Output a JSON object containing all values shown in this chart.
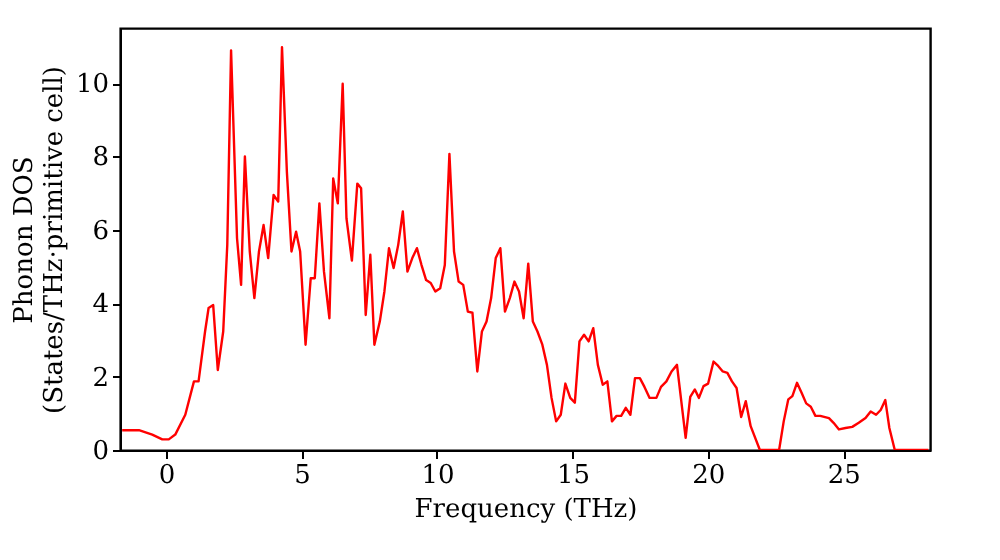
{
  "chart_data": {
    "type": "line",
    "xlabel": "Frequency (THz)",
    "ylabel": "Phonon DOS\n(States/THz·primitive cell)",
    "xlim": [
      -1.7,
      28.2
    ],
    "ylim": [
      0,
      11.5
    ],
    "xticks": [
      0,
      5,
      10,
      15,
      20,
      25
    ],
    "yticks": [
      0,
      2,
      4,
      6,
      8,
      10
    ],
    "grid": false,
    "legend": false,
    "marker": "none",
    "line_style": "solid",
    "series": [
      {
        "color": "#ff0000",
        "x": [
          -1.62,
          -1.0,
          -0.51,
          -0.14,
          0.1,
          0.34,
          0.71,
          1.03,
          1.2,
          1.44,
          1.57,
          1.74,
          1.91,
          2.11,
          2.26,
          2.4,
          2.62,
          2.77,
          2.91,
          3.09,
          3.26,
          3.43,
          3.6,
          3.77,
          3.97,
          4.14,
          4.28,
          4.46,
          4.63,
          4.8,
          4.95,
          5.15,
          5.34,
          5.49,
          5.66,
          5.83,
          6.03,
          6.17,
          6.34,
          6.52,
          6.66,
          6.86,
          7.06,
          7.2,
          7.37,
          7.54,
          7.69,
          7.89,
          8.06,
          8.23,
          8.4,
          8.57,
          8.74,
          8.91,
          9.09,
          9.26,
          9.43,
          9.6,
          9.77,
          9.94,
          10.12,
          10.29,
          10.46,
          10.63,
          10.8,
          10.97,
          11.14,
          11.31,
          11.49,
          11.66,
          11.83,
          12.0,
          12.17,
          12.34,
          12.51,
          12.69,
          12.86,
          13.03,
          13.2,
          13.37,
          13.54,
          13.71,
          13.89,
          14.06,
          14.23,
          14.4,
          14.57,
          14.74,
          14.92,
          15.09,
          15.26,
          15.43,
          15.6,
          15.77,
          15.94,
          16.12,
          16.29,
          16.46,
          16.63,
          16.8,
          16.97,
          17.14,
          17.31,
          17.49,
          17.66,
          17.85,
          18.1,
          18.27,
          18.47,
          18.66,
          18.86,
          19.18,
          19.35,
          19.52,
          19.67,
          19.84,
          20.01,
          20.21,
          20.38,
          20.55,
          20.72,
          20.89,
          21.06,
          21.23,
          21.4,
          21.58,
          21.92,
          22.63,
          22.8,
          22.97,
          23.12,
          23.29,
          23.46,
          23.63,
          23.8,
          23.97,
          24.15,
          24.47,
          24.64,
          24.84,
          25.08,
          25.33,
          25.57,
          25.82,
          26.01,
          26.21,
          26.38,
          26.55,
          26.7,
          26.9,
          28.14
        ],
        "values": [
          0.54,
          0.54,
          0.42,
          0.29,
          0.29,
          0.42,
          0.96,
          1.87,
          1.87,
          3.23,
          3.87,
          3.95,
          2.18,
          3.23,
          5.59,
          10.89,
          5.77,
          4.5,
          8.0,
          5.41,
          4.14,
          5.41,
          6.13,
          5.23,
          6.95,
          6.77,
          10.98,
          7.58,
          5.41,
          5.95,
          5.41,
          2.87,
          4.68,
          4.68,
          6.72,
          4.86,
          3.59,
          7.4,
          6.72,
          9.98,
          6.31,
          5.16,
          7.26,
          7.13,
          3.68,
          5.32,
          2.87,
          3.5,
          4.32,
          5.5,
          4.96,
          5.59,
          6.5,
          4.86,
          5.23,
          5.5,
          5.04,
          4.63,
          4.55,
          4.32,
          4.41,
          5.04,
          8.07,
          5.41,
          4.59,
          4.5,
          3.77,
          3.74,
          2.14,
          3.23,
          3.5,
          4.14,
          5.23,
          5.5,
          3.77,
          4.14,
          4.59,
          4.32,
          3.59,
          5.08,
          3.5,
          3.23,
          2.87,
          2.32,
          1.42,
          0.78,
          0.96,
          1.81,
          1.42,
          1.29,
          2.96,
          3.14,
          2.96,
          3.32,
          2.32,
          1.78,
          1.87,
          0.78,
          0.93,
          0.93,
          1.15,
          0.96,
          1.96,
          1.96,
          1.72,
          1.42,
          1.42,
          1.72,
          1.87,
          2.14,
          2.32,
          0.33,
          1.45,
          1.65,
          1.42,
          1.74,
          1.81,
          2.41,
          2.29,
          2.14,
          2.1,
          1.87,
          1.69,
          0.9,
          1.33,
          0.65,
          0,
          0,
          0.78,
          1.38,
          1.47,
          1.83,
          1.56,
          1.27,
          1.18,
          0.93,
          0.93,
          0.87,
          0.74,
          0.56,
          0.6,
          0.63,
          0.74,
          0.87,
          1.05,
          0.96,
          1.09,
          1.36,
          0.6,
          0,
          0
        ]
      }
    ]
  }
}
